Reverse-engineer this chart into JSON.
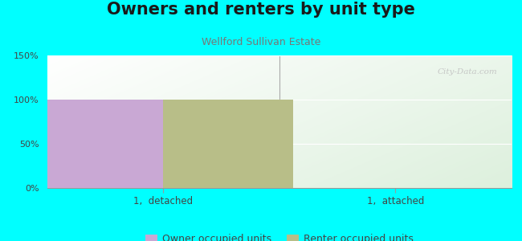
{
  "title": "Owners and renters by unit type",
  "subtitle": "Wellford Sullivan Estate",
  "categories": [
    "1,  detached",
    "1,  attached"
  ],
  "owner_values": [
    100,
    0
  ],
  "renter_values": [
    100,
    0
  ],
  "owner_color": "#c9a8d4",
  "renter_color": "#b8be88",
  "ylim": [
    0,
    150
  ],
  "yticks": [
    0,
    50,
    100,
    150
  ],
  "ytick_labels": [
    "0%",
    "50%",
    "100%",
    "150%"
  ],
  "bar_width": 0.28,
  "background_outer": "#00FFFF",
  "watermark": "City-Data.com",
  "title_fontsize": 15,
  "subtitle_fontsize": 9,
  "legend_fontsize": 9,
  "x_positions": [
    0.25,
    0.75
  ],
  "xlim": [
    0,
    1.0
  ]
}
